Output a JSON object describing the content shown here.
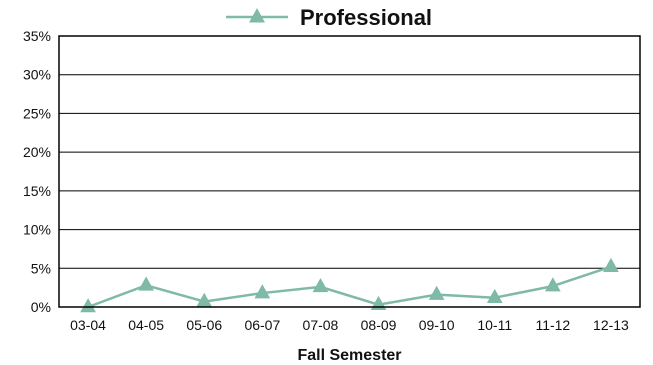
{
  "chart_data": {
    "type": "line",
    "categories": [
      "03-04",
      "04-05",
      "05-06",
      "06-07",
      "07-08",
      "08-09",
      "09-10",
      "10-11",
      "11-12",
      "12-13"
    ],
    "series": [
      {
        "name": "Professional",
        "values": [
          0.0,
          2.8,
          0.7,
          1.8,
          2.6,
          0.3,
          1.6,
          1.2,
          2.7,
          5.2
        ],
        "color": "#7fb9a7"
      }
    ],
    "xlabel": "Fall Semester",
    "ylabel": "",
    "ylim": [
      0,
      35
    ],
    "yticks": [
      {
        "value": 0,
        "label": "0%"
      },
      {
        "value": 5,
        "label": "5%"
      },
      {
        "value": 10,
        "label": "10%"
      },
      {
        "value": 15,
        "label": "15%"
      },
      {
        "value": 20,
        "label": "20%"
      },
      {
        "value": 25,
        "label": "25%"
      },
      {
        "value": 30,
        "label": "30%"
      },
      {
        "value": 35,
        "label": "35%"
      }
    ],
    "grid": true,
    "legend_position": "top-center",
    "marker": "triangle"
  }
}
